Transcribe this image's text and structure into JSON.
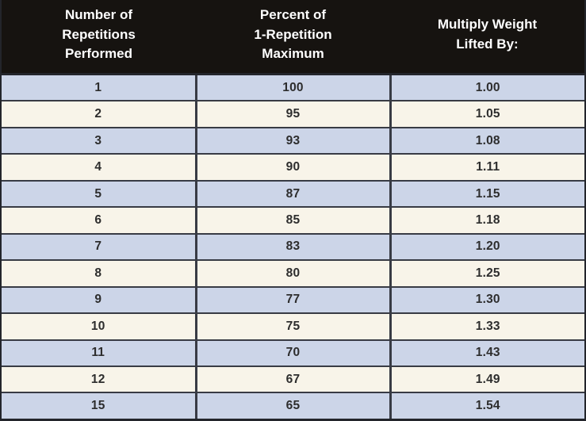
{
  "table": {
    "headers": [
      {
        "label": "Number of\nRepetitions\nPerformed"
      },
      {
        "label": "Percent of\n1-Repetition\nMaximum"
      },
      {
        "label": "Multiply Weight\nLifted By:"
      }
    ],
    "rows": [
      [
        "1",
        "100",
        "1.00"
      ],
      [
        "2",
        "95",
        "1.05"
      ],
      [
        "3",
        "93",
        "1.08"
      ],
      [
        "4",
        "90",
        "1.11"
      ],
      [
        "5",
        "87",
        "1.15"
      ],
      [
        "6",
        "85",
        "1.18"
      ],
      [
        "7",
        "83",
        "1.20"
      ],
      [
        "8",
        "80",
        "1.25"
      ],
      [
        "9",
        "77",
        "1.30"
      ],
      [
        "10",
        "75",
        "1.33"
      ],
      [
        "11",
        "70",
        "1.43"
      ],
      [
        "12",
        "67",
        "1.49"
      ],
      [
        "15",
        "65",
        "1.54"
      ]
    ]
  },
  "colors": {
    "header_bg": "#161310",
    "header_text": "#ffffff",
    "row_blue": "#ccd5e8",
    "row_cream": "#f8f4e9",
    "border": "#383b44",
    "cell_text": "#2d2d2d"
  },
  "chart_data": {
    "type": "table",
    "title": "",
    "columns": [
      "Number of Repetitions Performed",
      "Percent of 1-Repetition Maximum",
      "Multiply Weight Lifted By:"
    ],
    "repetitions": [
      1,
      2,
      3,
      4,
      5,
      6,
      7,
      8,
      9,
      10,
      11,
      12,
      15
    ],
    "percent_of_1rm": [
      100,
      95,
      93,
      90,
      87,
      85,
      83,
      80,
      77,
      75,
      70,
      67,
      65
    ],
    "multiplier": [
      1.0,
      1.05,
      1.08,
      1.11,
      1.15,
      1.18,
      1.2,
      1.25,
      1.3,
      1.33,
      1.43,
      1.49,
      1.54
    ]
  }
}
